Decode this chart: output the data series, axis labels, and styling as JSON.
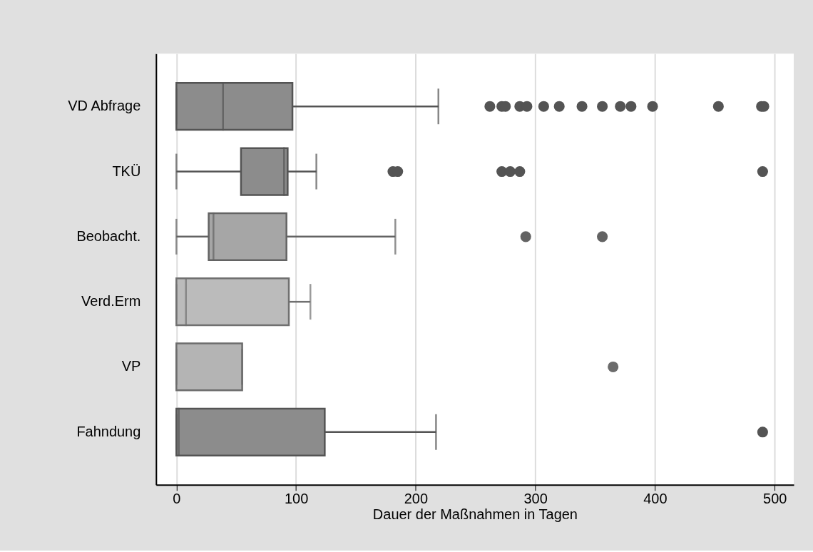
{
  "chart_data": {
    "type": "box",
    "orientation": "horizontal",
    "xlabel": "Dauer der Maßnahmen in Tagen",
    "categories": [
      "VD Abfrage",
      "TKÜ",
      "Beobacht.",
      "Verd.Erm",
      "VP",
      "Fahndung"
    ],
    "colors": [
      "#8c8c8c",
      "#8c8c8c",
      "#a6a6a6",
      "#bbbbbb",
      "#b4b4b4",
      "#8c8c8c"
    ],
    "boxes": [
      {
        "low": 0,
        "q1": 0,
        "median": 39,
        "q3": 97,
        "high": 219,
        "outliers": [
          262,
          272,
          275,
          287,
          293,
          307,
          320,
          339,
          356,
          371,
          380,
          398,
          453,
          489,
          491
        ]
      },
      {
        "low": 0,
        "q1": 54,
        "median": 90,
        "q3": 93,
        "high": 117,
        "outliers": [
          181,
          185,
          272,
          279,
          287,
          490
        ]
      },
      {
        "low": 0,
        "q1": 27,
        "median": 31,
        "q3": 92,
        "high": 183,
        "outliers": [
          292,
          356
        ]
      },
      {
        "low": 0,
        "q1": 0,
        "median": 8,
        "q3": 94,
        "high": 112
      },
      {
        "low": 0,
        "q1": 0,
        "median": 0,
        "q3": 55,
        "high": 55,
        "outliers": [
          365
        ]
      },
      {
        "low": 0,
        "q1": 0,
        "median": 2,
        "q3": 124,
        "high": 217,
        "outliers": [
          490
        ]
      }
    ],
    "xlim": [
      -17,
      516
    ],
    "xticks": [
      0,
      100,
      200,
      300,
      400,
      500
    ],
    "grid": "x"
  }
}
